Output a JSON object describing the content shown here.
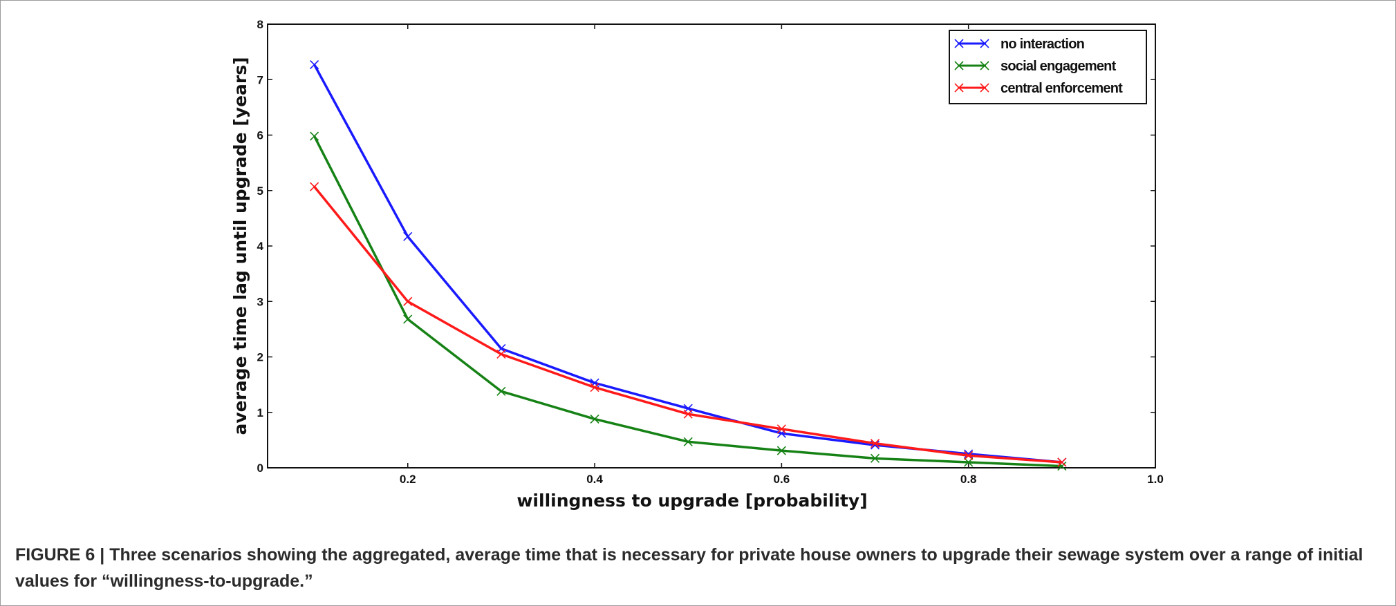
{
  "caption": {
    "label": "FIGURE 6 |",
    "text": "Three scenarios showing the aggregated, average time that is necessary for private house owners to upgrade their sewage system over a range of initial values for “willingness-to-upgrade.”"
  },
  "chart_data": {
    "type": "line",
    "title": "",
    "xlabel": "willingness to upgrade [probability]",
    "ylabel": "average time lag until upgrade [years]",
    "xlim": [
      0.05,
      1.0
    ],
    "ylim": [
      0,
      8
    ],
    "xticks": [
      0.2,
      0.4,
      0.6,
      0.8,
      1.0
    ],
    "xtick_labels": [
      "0.2",
      "0.4",
      "0.6",
      "0.8",
      "1.0"
    ],
    "yticks": [
      0,
      1,
      2,
      3,
      4,
      5,
      6,
      7,
      8
    ],
    "ytick_labels": [
      "0",
      "1",
      "2",
      "3",
      "4",
      "5",
      "6",
      "7",
      "8"
    ],
    "grid": false,
    "legend_position": "top-right",
    "marker": "x",
    "x": [
      0.1,
      0.2,
      0.3,
      0.4,
      0.5,
      0.6,
      0.7,
      0.8,
      0.9
    ],
    "series": [
      {
        "name": "no interaction",
        "color": "#1a1aff",
        "values": [
          7.27,
          4.17,
          2.15,
          1.53,
          1.07,
          0.62,
          0.41,
          0.25,
          0.1
        ]
      },
      {
        "name": "social engagement",
        "color": "#168216",
        "values": [
          5.98,
          2.68,
          1.38,
          0.88,
          0.47,
          0.31,
          0.17,
          0.1,
          0.03
        ]
      },
      {
        "name": "central enforcement",
        "color": "#ff1a1a",
        "values": [
          5.07,
          3.0,
          2.05,
          1.45,
          0.97,
          0.7,
          0.44,
          0.22,
          0.1
        ]
      }
    ]
  }
}
